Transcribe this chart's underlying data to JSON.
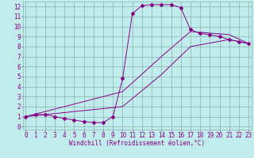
{
  "background_color": "#c0ecec",
  "grid_color": "#8ab0b0",
  "line_color": "#880088",
  "xlim": [
    -0.3,
    23.3
  ],
  "ylim": [
    -0.3,
    12.5
  ],
  "xtick_vals": [
    0,
    1,
    2,
    3,
    4,
    5,
    6,
    7,
    8,
    9,
    10,
    11,
    12,
    13,
    14,
    15,
    16,
    17,
    18,
    19,
    20,
    21,
    22,
    23
  ],
  "ytick_vals": [
    0,
    1,
    2,
    3,
    4,
    5,
    6,
    7,
    8,
    9,
    10,
    11,
    12
  ],
  "xlabel": "Windchill (Refroidissement éolien,°C)",
  "xlabel_fontsize": 5.5,
  "tick_fontsize": 5.5,
  "curve1_x": [
    0,
    1,
    2,
    3,
    4,
    5,
    6,
    7,
    8,
    9,
    10,
    11,
    12,
    13,
    14,
    15,
    16,
    17,
    18,
    19,
    20,
    21,
    22,
    23
  ],
  "curve1_y": [
    1.0,
    1.2,
    1.2,
    1.0,
    0.8,
    0.65,
    0.5,
    0.4,
    0.4,
    1.0,
    4.8,
    11.3,
    12.1,
    12.2,
    12.2,
    12.2,
    11.9,
    9.7,
    9.3,
    9.2,
    9.0,
    8.7,
    8.5,
    8.3
  ],
  "curve2_x": [
    0,
    10,
    14,
    17,
    21,
    23
  ],
  "curve2_y": [
    1.0,
    3.5,
    7.0,
    9.5,
    9.2,
    8.3
  ],
  "curve3_x": [
    0,
    10,
    14,
    17,
    21,
    23
  ],
  "curve3_y": [
    1.0,
    2.0,
    5.2,
    8.0,
    8.7,
    8.3
  ]
}
